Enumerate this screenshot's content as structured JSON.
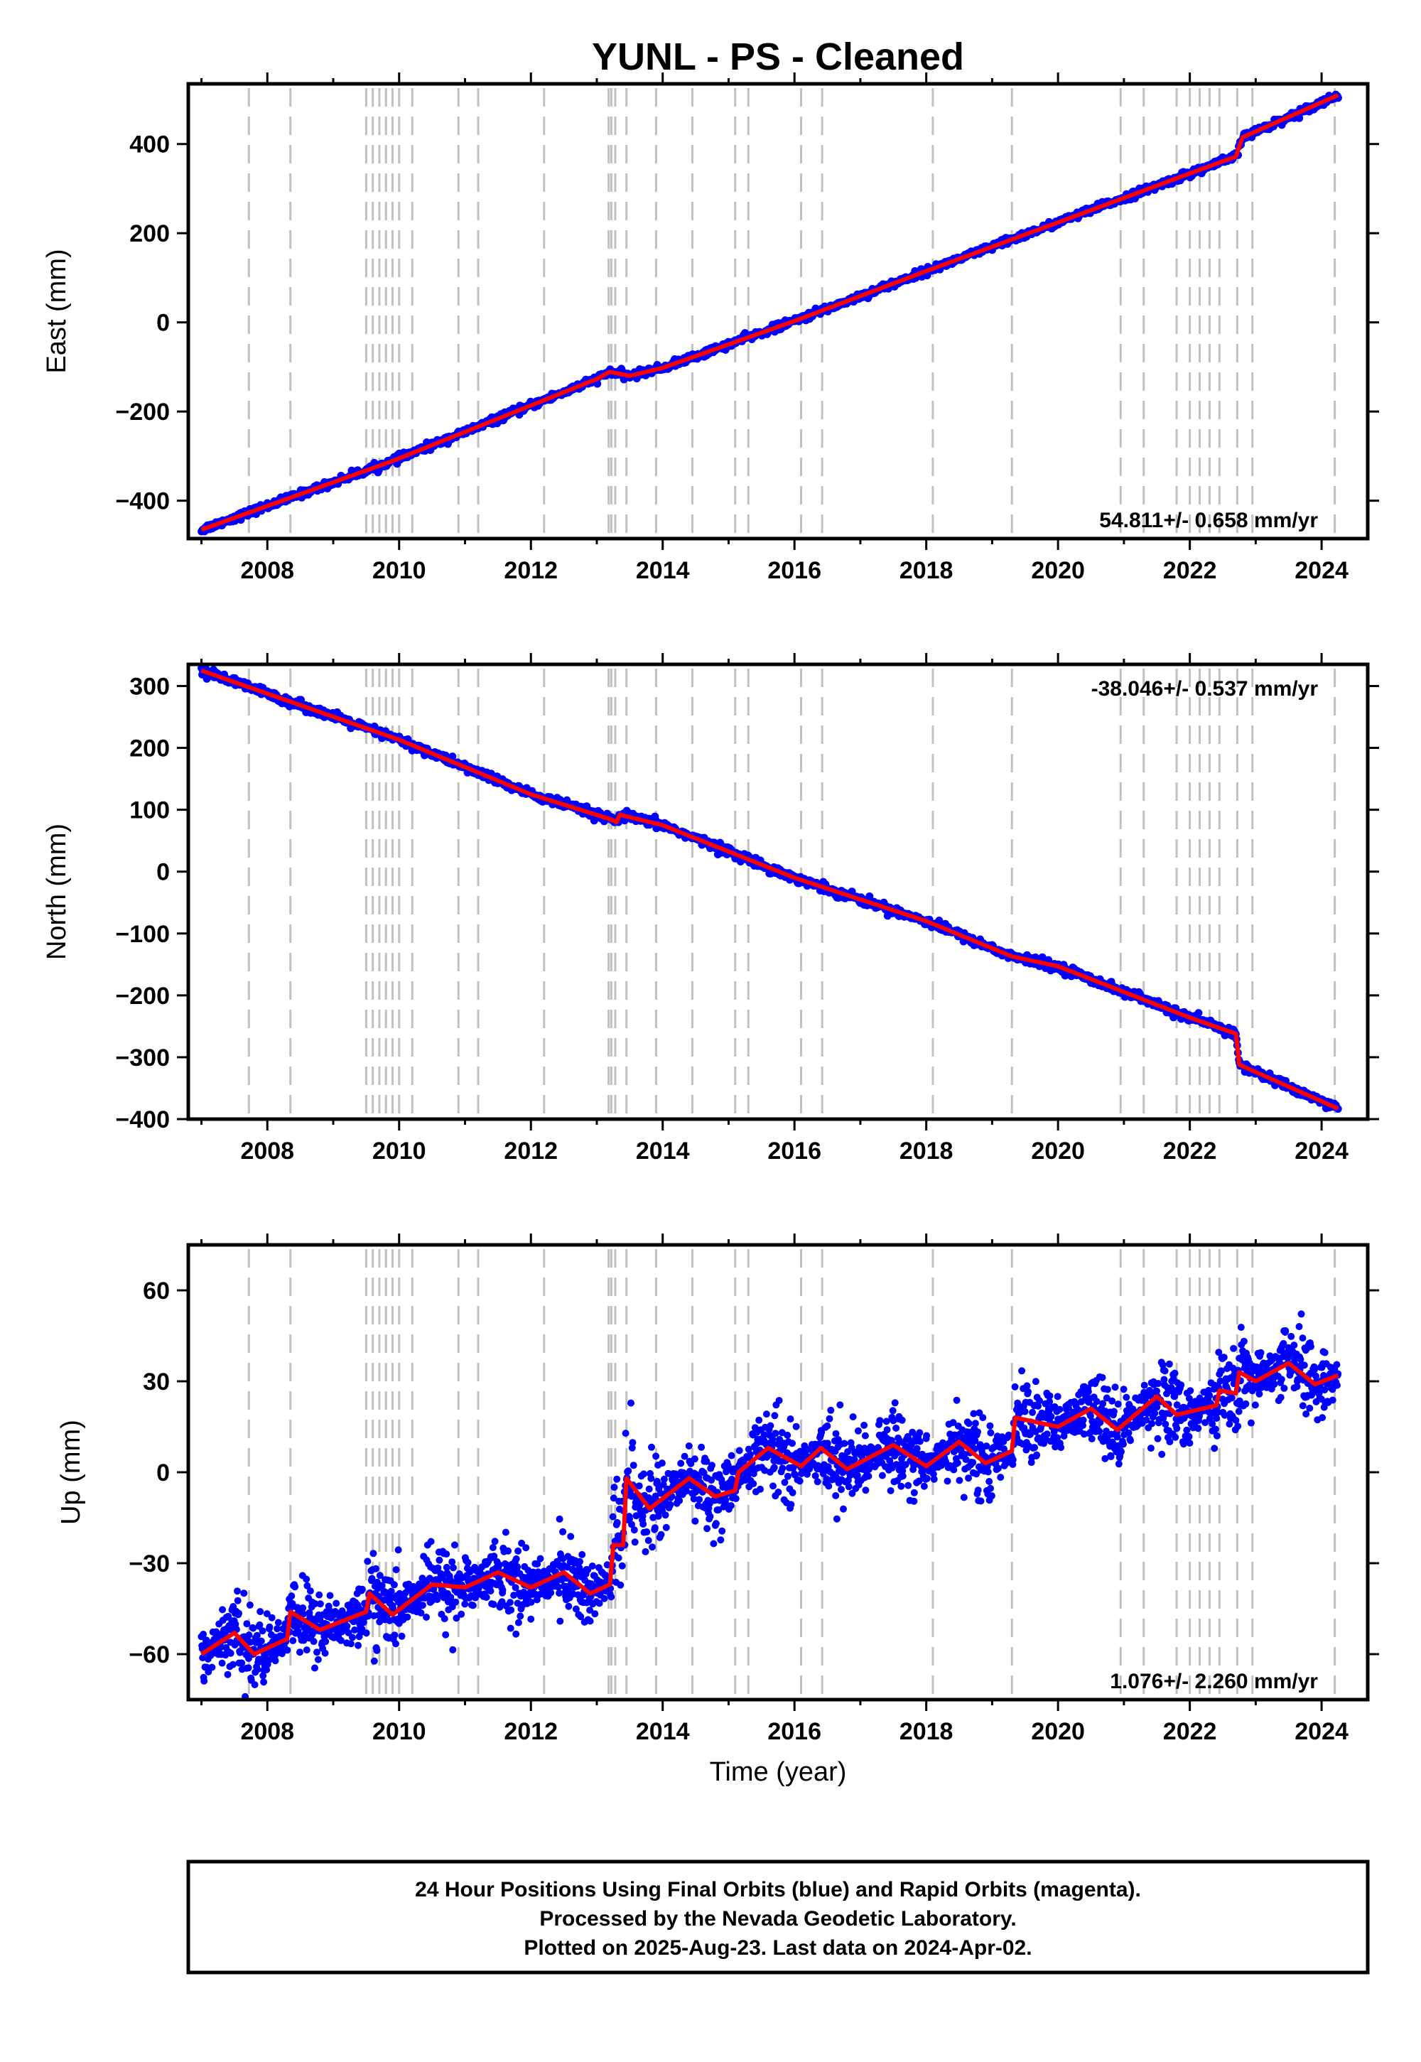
{
  "title": "YUNL  - PS - Cleaned",
  "footer": {
    "lines": [
      "24 Hour Positions Using Final Orbits (blue) and Rapid Orbits (magenta).",
      "Processed by the Nevada Geodetic Laboratory.",
      "Plotted on 2025-Aug-23. Last data on 2024-Apr-02."
    ]
  },
  "colors": {
    "points": "#0000ff",
    "model": "#ff0000",
    "steps": "#c0c0c0",
    "frame": "#000000"
  },
  "chart_data": [
    {
      "type": "scatter",
      "ylabel": "East (mm)",
      "xlabel": "",
      "xlim": [
        2006.8,
        2024.7
      ],
      "ylim": [
        -485,
        535
      ],
      "xticks": [
        "2008",
        "2010",
        "2012",
        "2014",
        "2016",
        "2018",
        "2020",
        "2022",
        "2024"
      ],
      "yticks": [
        "400",
        "200",
        "0",
        "−200",
        "−400"
      ],
      "ytick_values": [
        400,
        200,
        0,
        -200,
        -400
      ],
      "rate_label": "54.811+/- 0.658 mm/yr",
      "rate_position": "bottom-right",
      "data_range": [
        2007.0,
        2024.25
      ],
      "noise": 4,
      "trend": [
        [
          2007.0,
          -465
        ],
        [
          2009.9,
          -311
        ],
        [
          2013.0,
          -127
        ],
        [
          2013.2,
          -111
        ],
        [
          2013.5,
          -120
        ],
        [
          2014.0,
          -102
        ],
        [
          2016.0,
          3
        ],
        [
          2018.0,
          115
        ],
        [
          2020.0,
          224
        ],
        [
          2022.0,
          334
        ],
        [
          2022.7,
          372
        ],
        [
          2022.8,
          415
        ],
        [
          2024.25,
          510
        ]
      ]
    },
    {
      "type": "scatter",
      "ylabel": "North (mm)",
      "xlabel": "",
      "xlim": [
        2006.8,
        2024.7
      ],
      "ylim": [
        -400,
        335
      ],
      "xticks": [
        "2008",
        "2010",
        "2012",
        "2014",
        "2016",
        "2018",
        "2020",
        "2022",
        "2024"
      ],
      "yticks": [
        "300",
        "200",
        "100",
        "0",
        "−100",
        "−200",
        "−300",
        "−400"
      ],
      "ytick_values": [
        300,
        200,
        100,
        0,
        -100,
        -200,
        -300,
        -400
      ],
      "rate_label": "-38.046+/- 0.537 mm/yr",
      "rate_position": "top-right",
      "data_range": [
        2007.0,
        2024.25
      ],
      "noise": 3.5,
      "trend": [
        [
          2007.0,
          325
        ],
        [
          2010.0,
          213
        ],
        [
          2012.0,
          125
        ],
        [
          2013.2,
          85
        ],
        [
          2013.3,
          80
        ],
        [
          2013.35,
          92
        ],
        [
          2014.0,
          75
        ],
        [
          2016.0,
          -10
        ],
        [
          2018.0,
          -80
        ],
        [
          2019.3,
          -137
        ],
        [
          2020.0,
          -153
        ],
        [
          2022.0,
          -236
        ],
        [
          2022.7,
          -262
        ],
        [
          2022.75,
          -312
        ],
        [
          2024.25,
          -383
        ]
      ]
    },
    {
      "type": "scatter",
      "ylabel": "Up (mm)",
      "xlabel": "Time (year)",
      "xlim": [
        2006.8,
        2024.7
      ],
      "ylim": [
        -75,
        75
      ],
      "xticks": [
        "2008",
        "2010",
        "2012",
        "2014",
        "2016",
        "2018",
        "2020",
        "2022",
        "2024"
      ],
      "yticks": [
        "60",
        "30",
        "0",
        "−30",
        "−60"
      ],
      "ytick_values": [
        60,
        30,
        0,
        -30,
        -60
      ],
      "rate_label": "1.076+/- 2.260 mm/yr",
      "rate_position": "bottom-right",
      "data_range": [
        2007.0,
        2024.25
      ],
      "noise": 7,
      "trend": [
        [
          2007.0,
          -60
        ],
        [
          2007.5,
          -53
        ],
        [
          2007.8,
          -60
        ],
        [
          2008.3,
          -55
        ],
        [
          2008.35,
          -46
        ],
        [
          2008.8,
          -52
        ],
        [
          2009.5,
          -46
        ],
        [
          2009.55,
          -40
        ],
        [
          2009.9,
          -47
        ],
        [
          2010.5,
          -37
        ],
        [
          2011.0,
          -38
        ],
        [
          2011.5,
          -33
        ],
        [
          2012.0,
          -38
        ],
        [
          2012.5,
          -33
        ],
        [
          2012.9,
          -40
        ],
        [
          2013.2,
          -37
        ],
        [
          2013.25,
          -24
        ],
        [
          2013.4,
          -24
        ],
        [
          2013.45,
          -2
        ],
        [
          2013.8,
          -12
        ],
        [
          2014.4,
          -2
        ],
        [
          2014.8,
          -8
        ],
        [
          2015.1,
          -6
        ],
        [
          2015.15,
          0
        ],
        [
          2015.6,
          8
        ],
        [
          2016.1,
          2
        ],
        [
          2016.4,
          8
        ],
        [
          2016.8,
          1
        ],
        [
          2017.5,
          9
        ],
        [
          2018.0,
          2
        ],
        [
          2018.5,
          10
        ],
        [
          2018.9,
          3
        ],
        [
          2019.3,
          7
        ],
        [
          2019.35,
          18
        ],
        [
          2020.0,
          15
        ],
        [
          2020.5,
          21
        ],
        [
          2020.9,
          14
        ],
        [
          2021.5,
          25
        ],
        [
          2021.8,
          19
        ],
        [
          2022.4,
          22
        ],
        [
          2022.45,
          27
        ],
        [
          2022.7,
          26
        ],
        [
          2022.75,
          33
        ],
        [
          2023.0,
          30
        ],
        [
          2023.5,
          36
        ],
        [
          2023.9,
          29
        ],
        [
          2024.25,
          32
        ]
      ]
    }
  ]
}
